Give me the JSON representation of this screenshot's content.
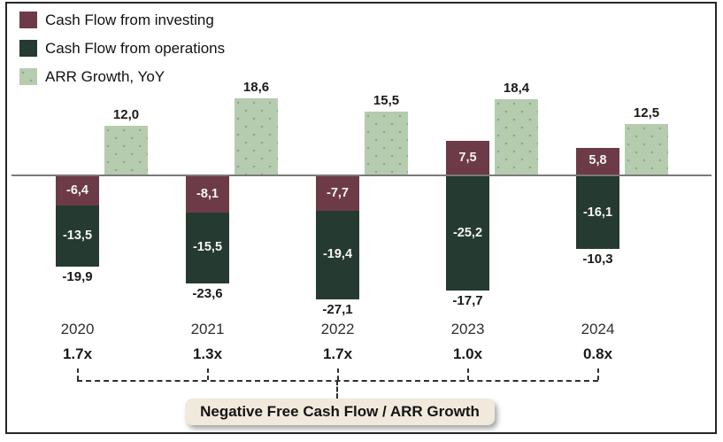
{
  "legend": [
    {
      "label": "Cash Flow from investing",
      "color": "#6d3b47",
      "pattern": "solid"
    },
    {
      "label": "Cash Flow from operations",
      "color": "#253a30",
      "pattern": "solid"
    },
    {
      "label": "ARR Growth, YoY",
      "color": "#b5ccaf",
      "pattern": "dotted"
    }
  ],
  "chart_data": {
    "type": "bar",
    "categories": [
      "2020",
      "2021",
      "2022",
      "2023",
      "2024"
    ],
    "series": [
      {
        "name": "Cash Flow from investing",
        "color": "#6d3b47",
        "values": [
          -6.4,
          -8.1,
          -7.7,
          7.5,
          5.8
        ],
        "labels": [
          "-6,4",
          "-8,1",
          "-7,7",
          "7,5",
          "5,8"
        ]
      },
      {
        "name": "Cash Flow from operations",
        "color": "#253a30",
        "values": [
          -13.5,
          -15.5,
          -19.4,
          -25.2,
          -16.1
        ],
        "labels": [
          "-13,5",
          "-15,5",
          "-19,4",
          "-25,2",
          "-16,1"
        ]
      },
      {
        "name": "ARR Growth, YoY",
        "color": "#b5ccaf",
        "values": [
          12.0,
          18.6,
          15.5,
          18.4,
          12.5
        ],
        "labels": [
          "12,0",
          "18,6",
          "15,5",
          "18,4",
          "12,5"
        ]
      }
    ],
    "totals": {
      "name": "Free Cash Flow total",
      "values": [
        -19.9,
        -23.6,
        -27.1,
        -17.7,
        -10.3
      ],
      "labels": [
        "-19,9",
        "-23,6",
        "-27,1",
        "-17,7",
        "-10,3"
      ]
    },
    "ratios": [
      "1.7x",
      "1.3x",
      "1.7x",
      "1.0x",
      "0.8x"
    ],
    "annotation": "Negative Free Cash Flow / ARR Growth",
    "annotation_bg": "#f1e9dc",
    "axis_color": "#7a7a7a",
    "legend_position": "top-left",
    "grid": false,
    "baseline": 0
  }
}
